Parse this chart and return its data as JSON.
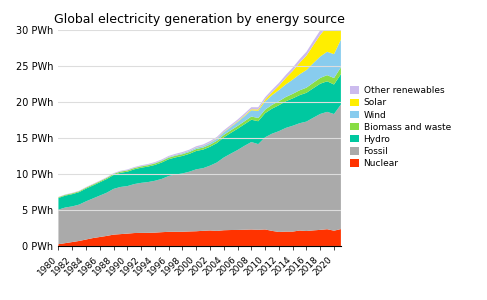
{
  "title": "Global electricity generation by energy source",
  "years": [
    1980,
    1981,
    1982,
    1983,
    1984,
    1985,
    1986,
    1987,
    1988,
    1989,
    1990,
    1991,
    1992,
    1993,
    1994,
    1995,
    1996,
    1997,
    1998,
    1999,
    2000,
    2001,
    2002,
    2003,
    2004,
    2005,
    2006,
    2007,
    2008,
    2009,
    2010,
    2011,
    2012,
    2013,
    2014,
    2015,
    2016,
    2017,
    2018,
    2019,
    2020,
    2021
  ],
  "nuclear": [
    0.25,
    0.4,
    0.55,
    0.7,
    0.9,
    1.1,
    1.25,
    1.4,
    1.58,
    1.65,
    1.72,
    1.8,
    1.82,
    1.83,
    1.86,
    1.92,
    1.97,
    1.98,
    1.98,
    2.02,
    2.05,
    2.11,
    2.16,
    2.1,
    2.19,
    2.22,
    2.23,
    2.26,
    2.29,
    2.25,
    2.3,
    2.1,
    1.95,
    2.0,
    2.0,
    2.15,
    2.08,
    2.17,
    2.24,
    2.33,
    2.13,
    2.35
  ],
  "fossil": [
    4.8,
    4.95,
    4.95,
    5.05,
    5.3,
    5.5,
    5.75,
    6.0,
    6.35,
    6.55,
    6.6,
    6.8,
    6.95,
    7.05,
    7.2,
    7.4,
    7.75,
    7.95,
    8.1,
    8.3,
    8.6,
    8.7,
    9.0,
    9.5,
    10.1,
    10.6,
    11.1,
    11.65,
    12.15,
    11.9,
    12.8,
    13.5,
    14.0,
    14.4,
    14.7,
    14.9,
    15.2,
    15.65,
    16.1,
    16.3,
    16.2,
    17.3
  ],
  "hydro": [
    1.62,
    1.65,
    1.7,
    1.73,
    1.77,
    1.8,
    1.85,
    1.9,
    1.93,
    1.97,
    2.0,
    2.05,
    2.1,
    2.15,
    2.2,
    2.28,
    2.33,
    2.38,
    2.43,
    2.48,
    2.55,
    2.58,
    2.62,
    2.7,
    2.8,
    2.88,
    2.95,
    3.0,
    3.1,
    3.18,
    3.35,
    3.48,
    3.6,
    3.7,
    3.8,
    3.9,
    4.0,
    4.1,
    4.2,
    4.25,
    4.1,
    4.22
  ],
  "biomass": [
    0.1,
    0.11,
    0.12,
    0.12,
    0.13,
    0.14,
    0.14,
    0.15,
    0.15,
    0.16,
    0.17,
    0.17,
    0.18,
    0.19,
    0.2,
    0.21,
    0.22,
    0.23,
    0.24,
    0.25,
    0.27,
    0.28,
    0.3,
    0.31,
    0.34,
    0.36,
    0.39,
    0.41,
    0.44,
    0.45,
    0.49,
    0.52,
    0.56,
    0.59,
    0.63,
    0.67,
    0.71,
    0.76,
    0.8,
    0.85,
    0.9,
    0.95
  ],
  "wind": [
    0.003,
    0.004,
    0.005,
    0.006,
    0.008,
    0.01,
    0.013,
    0.016,
    0.02,
    0.025,
    0.03,
    0.036,
    0.042,
    0.05,
    0.058,
    0.07,
    0.083,
    0.1,
    0.12,
    0.14,
    0.17,
    0.2,
    0.24,
    0.28,
    0.35,
    0.44,
    0.55,
    0.7,
    0.87,
    1.0,
    1.15,
    1.35,
    1.55,
    1.75,
    1.98,
    2.22,
    2.45,
    2.72,
    2.98,
    3.25,
    3.32,
    3.85
  ],
  "solar": [
    0.001,
    0.001,
    0.001,
    0.002,
    0.002,
    0.002,
    0.003,
    0.003,
    0.004,
    0.005,
    0.006,
    0.007,
    0.008,
    0.01,
    0.012,
    0.014,
    0.016,
    0.018,
    0.021,
    0.024,
    0.028,
    0.032,
    0.038,
    0.044,
    0.055,
    0.07,
    0.089,
    0.11,
    0.14,
    0.18,
    0.25,
    0.38,
    0.6,
    0.9,
    1.2,
    1.6,
    2.0,
    2.5,
    3.0,
    3.5,
    3.7,
    4.2
  ],
  "other_renewables": [
    0.05,
    0.05,
    0.06,
    0.06,
    0.07,
    0.07,
    0.07,
    0.08,
    0.08,
    0.09,
    0.1,
    0.1,
    0.11,
    0.11,
    0.12,
    0.13,
    0.14,
    0.15,
    0.16,
    0.17,
    0.19,
    0.2,
    0.21,
    0.22,
    0.23,
    0.24,
    0.25,
    0.27,
    0.29,
    0.31,
    0.33,
    0.36,
    0.39,
    0.42,
    0.46,
    0.5,
    0.54,
    0.59,
    0.64,
    0.69,
    0.73,
    0.8
  ],
  "colors": {
    "nuclear": "#ff3300",
    "fossil": "#aaaaaa",
    "hydro": "#00c8a0",
    "biomass": "#88dd44",
    "wind": "#88ccee",
    "solar": "#ffee00",
    "other_renewables": "#ccbbee"
  },
  "labels": {
    "nuclear": "Nuclear",
    "fossil": "Fossil",
    "hydro": "Hydro",
    "biomass": "Biomass and waste",
    "wind": "Wind",
    "solar": "Solar",
    "other_renewables": "Other renewables"
  },
  "ylim": [
    0,
    30
  ],
  "yticks": [
    0,
    5,
    10,
    15,
    20,
    25,
    30
  ],
  "figsize": [
    4.87,
    3.0
  ],
  "dpi": 100
}
